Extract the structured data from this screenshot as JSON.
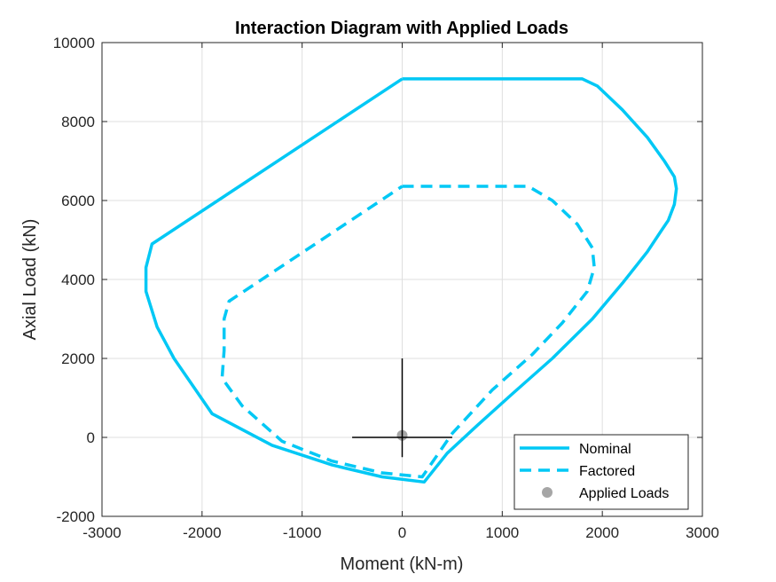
{
  "chart_data": {
    "type": "line",
    "title": "Interaction Diagram with Applied Loads",
    "xlabel": "Moment (kN-m)",
    "ylabel": "Axial Load (kN)",
    "xlim": [
      -3000,
      3000
    ],
    "ylim": [
      -2000,
      10000
    ],
    "xticks": [
      -3000,
      -2000,
      -1000,
      0,
      1000,
      2000,
      3000
    ],
    "yticks": [
      -2000,
      0,
      2000,
      4000,
      6000,
      8000,
      10000
    ],
    "xtick_labels": [
      "-3000",
      "-2000",
      "-1000",
      "0",
      "1000",
      "2000",
      "3000"
    ],
    "ytick_labels": [
      "-2000",
      "0",
      "2000",
      "4000",
      "6000",
      "8000",
      "10000"
    ],
    "grid": true,
    "legend_position": "bottom-right",
    "series": [
      {
        "name": "Nominal",
        "style": "solid",
        "color": "#00c8f5",
        "points": [
          [
            0,
            9080
          ],
          [
            1800,
            9080
          ],
          [
            1950,
            8900
          ],
          [
            2200,
            8300
          ],
          [
            2450,
            7600
          ],
          [
            2620,
            7000
          ],
          [
            2720,
            6600
          ],
          [
            2740,
            6300
          ],
          [
            2720,
            5900
          ],
          [
            2660,
            5500
          ],
          [
            2580,
            5200
          ],
          [
            2450,
            4700
          ],
          [
            2200,
            3900
          ],
          [
            1900,
            3000
          ],
          [
            1500,
            2000
          ],
          [
            1100,
            1100
          ],
          [
            750,
            300
          ],
          [
            450,
            -400
          ],
          [
            220,
            -1130
          ],
          [
            -200,
            -1000
          ],
          [
            -700,
            -700
          ],
          [
            -1300,
            -200
          ],
          [
            -1900,
            600
          ],
          [
            -2280,
            2000
          ],
          [
            -2450,
            2800
          ],
          [
            -2560,
            3700
          ],
          [
            -2560,
            4300
          ],
          [
            -2500,
            4900
          ],
          [
            0,
            9080
          ]
        ]
      },
      {
        "name": "Factored",
        "style": "dashed",
        "color": "#00c8f5",
        "points": [
          [
            0,
            6360
          ],
          [
            1260,
            6360
          ],
          [
            1500,
            6000
          ],
          [
            1750,
            5400
          ],
          [
            1900,
            4800
          ],
          [
            1920,
            4300
          ],
          [
            1850,
            3700
          ],
          [
            1600,
            2900
          ],
          [
            1300,
            2100
          ],
          [
            900,
            1200
          ],
          [
            500,
            100
          ],
          [
            200,
            -1000
          ],
          [
            -200,
            -900
          ],
          [
            -700,
            -600
          ],
          [
            -1200,
            -100
          ],
          [
            -1600,
            800
          ],
          [
            -1800,
            1500
          ],
          [
            -1780,
            2200
          ],
          [
            -1780,
            3000
          ],
          [
            -1730,
            3450
          ],
          [
            0,
            6360
          ]
        ]
      },
      {
        "name": "Applied Loads",
        "style": "marker",
        "color": "#a6a6a6",
        "points": [
          [
            0,
            50
          ]
        ]
      }
    ],
    "crosshair": {
      "color": "#000000",
      "horizontal": [
        [
          -500,
          0
        ],
        [
          500,
          0
        ]
      ],
      "vertical": [
        [
          0,
          -500
        ],
        [
          0,
          2000
        ]
      ]
    }
  }
}
